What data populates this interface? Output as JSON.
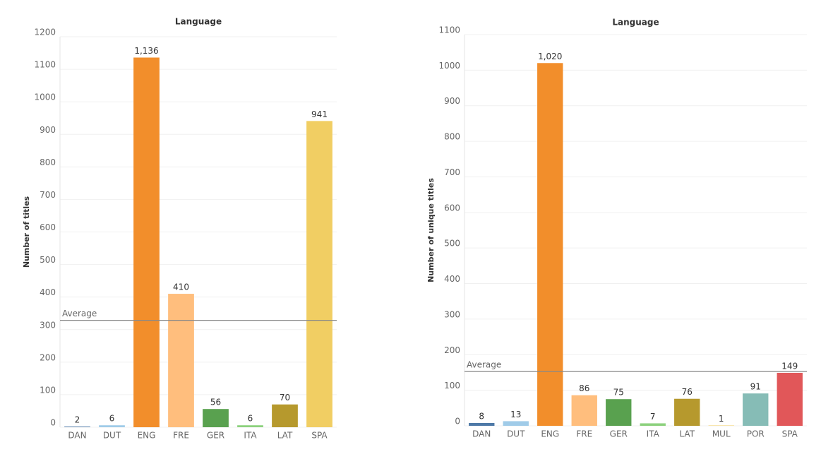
{
  "chart_data": [
    {
      "type": "bar",
      "title": "Language",
      "y_label": "Number of titles",
      "categories": [
        "DAN",
        "DUT",
        "ENG",
        "FRE",
        "GER",
        "ITA",
        "LAT",
        "SPA"
      ],
      "values": [
        2,
        6,
        1136,
        410,
        56,
        6,
        70,
        941
      ],
      "value_labels": [
        "2",
        "6",
        "1,136",
        "410",
        "56",
        "6",
        "70",
        "941"
      ],
      "colors": [
        "#4e79a7",
        "#a0cbe8",
        "#f28e2b",
        "#ffbe7d",
        "#59a14f",
        "#8cd17d",
        "#b6992d",
        "#f1ce63"
      ],
      "ylim": [
        0,
        1200
      ],
      "yticks": [
        0,
        100,
        200,
        300,
        400,
        500,
        600,
        700,
        800,
        900,
        1000,
        1100,
        1200
      ],
      "grid": true,
      "average": {
        "label": "Average",
        "value": 328.4
      }
    },
    {
      "type": "bar",
      "title": "Language",
      "y_label": "Number of unique titles",
      "categories": [
        "DAN",
        "DUT",
        "ENG",
        "FRE",
        "GER",
        "ITA",
        "LAT",
        "MUL",
        "POR",
        "SPA"
      ],
      "values": [
        8,
        13,
        1020,
        86,
        75,
        7,
        76,
        1,
        91,
        149
      ],
      "value_labels": [
        "8",
        "13",
        "1,020",
        "86",
        "75",
        "7",
        "76",
        "1",
        "91",
        "149"
      ],
      "colors": [
        "#4e79a7",
        "#a0cbe8",
        "#f28e2b",
        "#ffbe7d",
        "#59a14f",
        "#8cd17d",
        "#b6992d",
        "#f1ce63",
        "#86bcb6",
        "#e15759"
      ],
      "ylim": [
        0,
        1100
      ],
      "yticks": [
        0,
        100,
        200,
        300,
        400,
        500,
        600,
        700,
        800,
        900,
        1000,
        1100
      ],
      "grid": true,
      "average": {
        "label": "Average",
        "value": 152.6
      }
    }
  ]
}
